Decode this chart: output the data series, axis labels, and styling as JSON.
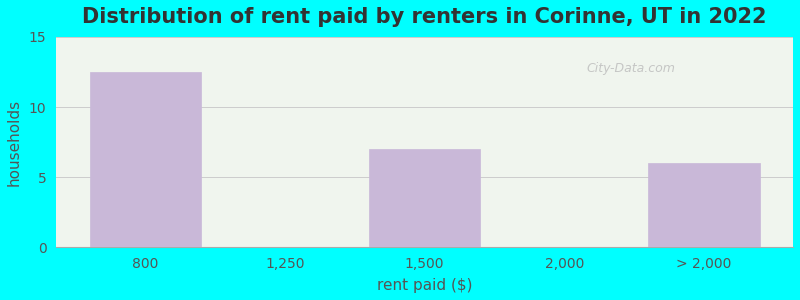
{
  "title": "Distribution of rent paid by renters in Corinne, UT in 2022",
  "xlabel": "rent paid ($)",
  "ylabel": "households",
  "background_color": "#00FFFF",
  "plot_bg_color_top": "#f0f5ee",
  "plot_bg_color_bottom": "#e8f4e0",
  "bar_categories": [
    "800",
    "1,250",
    "1,500",
    "2,000",
    "> 2,000"
  ],
  "bar_values": [
    12.5,
    0,
    7,
    0,
    6
  ],
  "bar_color": "#c9b8d8",
  "bar_edge_color": "#c9b8d8",
  "ylim": [
    0,
    15
  ],
  "yticks": [
    0,
    5,
    10,
    15
  ],
  "grid_color": "#cccccc",
  "title_fontsize": 15,
  "axis_label_fontsize": 11,
  "tick_fontsize": 10,
  "figsize": [
    8.0,
    3.0
  ],
  "dpi": 100
}
